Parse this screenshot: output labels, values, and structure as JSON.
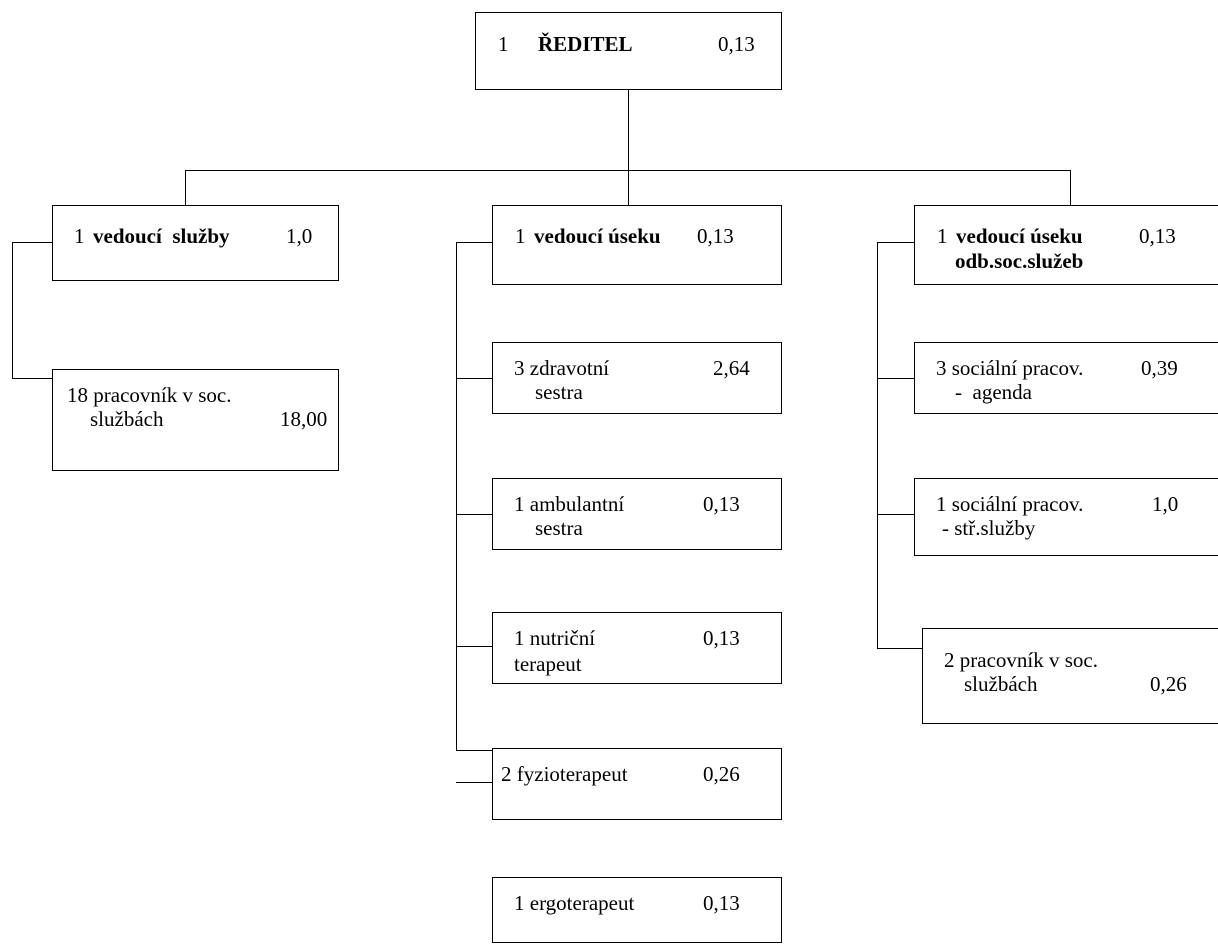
{
  "director": {
    "count": "1",
    "title": "ŘEDITEL",
    "value": "0,13"
  },
  "left": {
    "head": {
      "count": "1",
      "title": "vedoucí  služby",
      "value": "1,0"
    },
    "items": [
      {
        "line1": "18 pracovník v soc.",
        "line2": "službách",
        "value": "18,00"
      }
    ]
  },
  "middle": {
    "head": {
      "count": "1",
      "title": "vedoucí úseku",
      "value": "0,13"
    },
    "items": [
      {
        "line1": "3 zdravotní",
        "line2": "sestra",
        "value": "2,64"
      },
      {
        "line1": "1 ambulantní",
        "line2": "sestra",
        "value": "0,13"
      },
      {
        "line1": "1 nutriční",
        "line2": "terapeut",
        "value": "0,13"
      },
      {
        "line1": "2 fyzioterapeut",
        "value": "0,26"
      },
      {
        "line1": "1 ergoterapeut",
        "value": "0,13"
      }
    ]
  },
  "right": {
    "head": {
      "count": "1",
      "title": "vedoucí úseku",
      "title2": "odb.soc.služeb",
      "value": "0,13"
    },
    "items": [
      {
        "line1": "3 sociální pracov.",
        "line2": "-  agenda",
        "value": "0,39"
      },
      {
        "line1": "1 sociální pracov.",
        "line2": "- stř.služby",
        "value": "1,0"
      },
      {
        "line1": "2 pracovník v soc.",
        "line2": "službách",
        "value": "0,26"
      }
    ]
  }
}
